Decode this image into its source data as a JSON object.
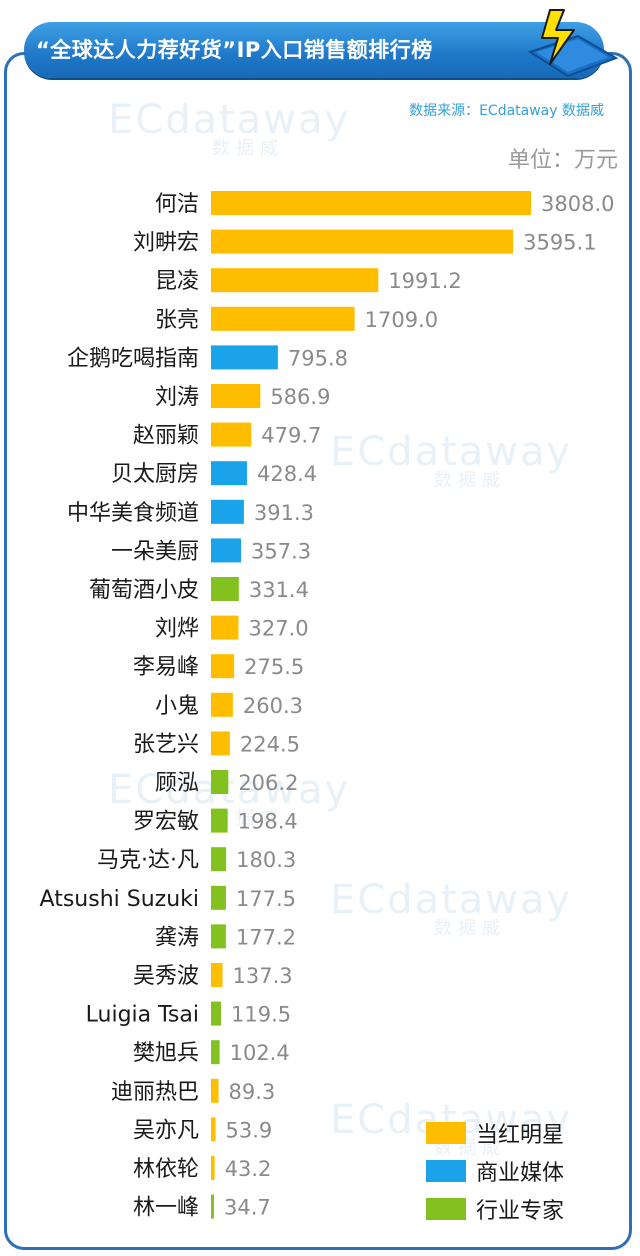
{
  "header": {
    "title": "“全球达人力荐好货”IP入口销售额排行榜",
    "source": "数据来源：ECdataway 数据威",
    "unit": "单位：万元"
  },
  "watermark": {
    "brand": "ECdataway",
    "sub": "数据威"
  },
  "colors": {
    "star": "#ffbd00",
    "media": "#1aa3e8",
    "expert": "#82c11f",
    "frame": "#2d6fb8"
  },
  "legend": [
    {
      "key": "star",
      "label": "当红明星"
    },
    {
      "key": "media",
      "label": "商业媒体"
    },
    {
      "key": "expert",
      "label": "行业专家"
    }
  ],
  "chart_data": {
    "type": "bar",
    "orientation": "horizontal",
    "title": "“全球达人力荐好货”IP入口销售额排行榜",
    "unit": "单位：万元",
    "categories": [
      "何洁",
      "刘畊宏",
      "昆凌",
      "张亮",
      "企鹅吃喝指南",
      "刘涛",
      "赵丽颖",
      "贝太厨房",
      "中华美食频道",
      "一朵美厨",
      "葡萄酒小皮",
      "刘烨",
      "李易峰",
      "小鬼",
      "张艺兴",
      "顾泓",
      "罗宏敏",
      "马克·达·凡",
      "Atsushi Suzuki",
      "龚涛",
      "吴秀波",
      "Luigia Tsai",
      "樊旭兵",
      "迪丽热巴",
      "吴亦凡",
      "林依轮",
      "林一峰"
    ],
    "values": [
      3808.0,
      3595.1,
      1991.2,
      1709.0,
      795.8,
      586.9,
      479.7,
      428.4,
      391.3,
      357.3,
      331.4,
      327.0,
      275.5,
      260.3,
      224.5,
      206.2,
      198.4,
      180.3,
      177.5,
      177.2,
      137.3,
      119.5,
      102.4,
      89.3,
      53.9,
      43.2,
      34.7
    ],
    "value_labels": [
      "3808.0",
      "3595.1",
      "1991.2",
      "1709.0",
      "795.8",
      "586.9",
      "479.7",
      "428.4",
      "391.3",
      "357.3",
      "331.4",
      "327.0",
      "275.5",
      "260.3",
      "224.5",
      "206.2",
      "198.4",
      "180.3",
      "177.5",
      "177.2",
      "137.3",
      "119.5",
      "102.4",
      "89.3",
      "53.9",
      "43.2",
      "34.7"
    ],
    "groups": [
      "star",
      "star",
      "star",
      "star",
      "media",
      "star",
      "star",
      "media",
      "media",
      "media",
      "expert",
      "star",
      "star",
      "star",
      "star",
      "expert",
      "expert",
      "expert",
      "expert",
      "expert",
      "star",
      "expert",
      "expert",
      "star",
      "star",
      "star",
      "expert"
    ],
    "legend_position": "bottom-right",
    "grid": false
  }
}
